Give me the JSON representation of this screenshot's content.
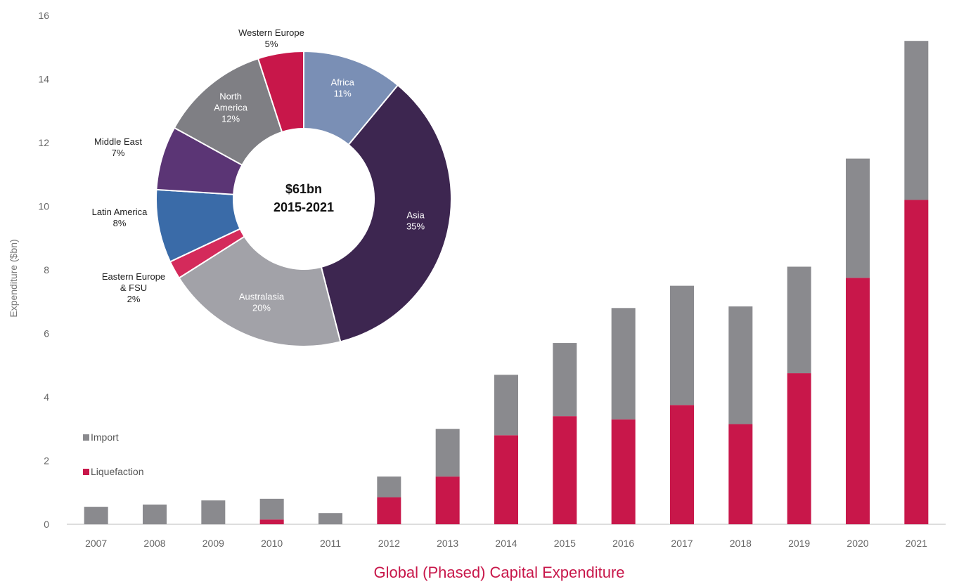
{
  "chart_data": [
    {
      "type": "bar",
      "stacked": true,
      "xlabel": "Global (Phased) Capital Expenditure",
      "ylabel": "Expenditure ($bn)",
      "ylim": [
        0,
        16
      ],
      "yticks": [
        0,
        2,
        4,
        6,
        8,
        10,
        12,
        14,
        16
      ],
      "grid": false,
      "legend_position": "bottom-left",
      "categories": [
        "2007",
        "2008",
        "2009",
        "2010",
        "2011",
        "2012",
        "2013",
        "2014",
        "2015",
        "2016",
        "2017",
        "2018",
        "2019",
        "2020",
        "2021"
      ],
      "series": [
        {
          "name": "Liquefaction",
          "color": "#c8174a",
          "values": [
            0,
            0,
            0,
            0.15,
            0,
            0.85,
            1.5,
            2.8,
            3.4,
            3.3,
            3.75,
            3.15,
            4.75,
            7.75,
            10.2
          ]
        },
        {
          "name": "Import",
          "color": "#8a8a8e",
          "values": [
            0.55,
            0.62,
            0.75,
            0.65,
            0.35,
            0.65,
            1.5,
            1.9,
            2.3,
            3.5,
            3.75,
            3.7,
            3.35,
            3.75,
            5.0
          ]
        }
      ],
      "legend": [
        {
          "label": "Import",
          "color": "#8a8a8e"
        },
        {
          "label": "Liquefaction",
          "color": "#c8174a"
        }
      ]
    },
    {
      "type": "pie",
      "donut": true,
      "center_text": [
        "$61bn",
        "2015-2021"
      ],
      "slices": [
        {
          "label": [
            "Africa",
            "11%"
          ],
          "value": 11,
          "color": "#7a8fb5",
          "label_inside": true
        },
        {
          "label": [
            "Asia",
            "35%"
          ],
          "value": 35,
          "color": "#3d2650",
          "label_inside": true
        },
        {
          "label": [
            "Australasia",
            "20%"
          ],
          "value": 20,
          "color": "#a2a2a8",
          "label_inside": true
        },
        {
          "label": [
            "Eastern Europe",
            "& FSU",
            "2%"
          ],
          "value": 2,
          "color": "#d42a5b",
          "label_inside": false
        },
        {
          "label": [
            "Latin America",
            "8%"
          ],
          "value": 8,
          "color": "#3a6ba8",
          "label_inside": false
        },
        {
          "label": [
            "Middle East",
            "7%"
          ],
          "value": 7,
          "color": "#5b3575",
          "label_inside": false
        },
        {
          "label": [
            "North",
            "America",
            "12%"
          ],
          "value": 12,
          "color": "#7f7f84",
          "label_inside": true
        },
        {
          "label": [
            "Western Europe",
            "5%"
          ],
          "value": 5,
          "color": "#c8174a",
          "label_inside": false
        }
      ]
    }
  ]
}
